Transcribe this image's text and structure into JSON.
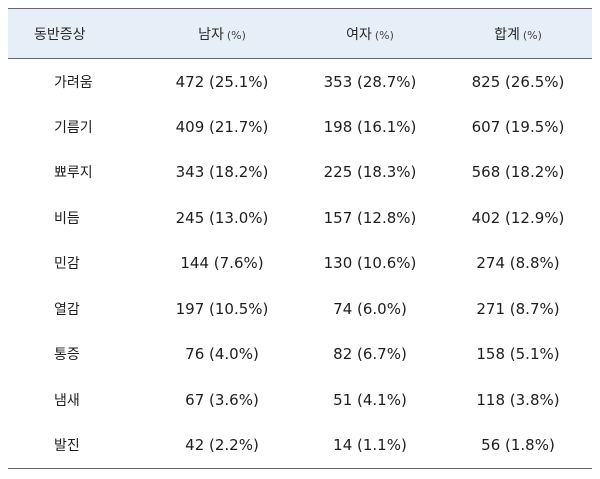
{
  "table": {
    "headers": {
      "symptom": "동반증상",
      "male": "남자",
      "female": "여자",
      "total": "합계",
      "unit": "(%)"
    },
    "rows": [
      {
        "symptom": "가려움",
        "male": "472 (25.1%)",
        "female": "353 (28.7%)",
        "total": "825 (26.5%)"
      },
      {
        "symptom": "기름기",
        "male": "409 (21.7%)",
        "female": "198 (16.1%)",
        "total": "607 (19.5%)"
      },
      {
        "symptom": "뾰루지",
        "male": "343 (18.2%)",
        "female": "225 (18.3%)",
        "total": "568 (18.2%)"
      },
      {
        "symptom": "비듬",
        "male": "245 (13.0%)",
        "female": "157 (12.8%)",
        "total": "402 (12.9%)"
      },
      {
        "symptom": "민감",
        "male": "144 (7.6%)",
        "female": "130 (10.6%)",
        "total": "274 (8.8%)"
      },
      {
        "symptom": "열감",
        "male": "197 (10.5%)",
        "female": "74 (6.0%)",
        "total": "271 (8.7%)"
      },
      {
        "symptom": "통증",
        "male": "76 (4.0%)",
        "female": "82 (6.7%)",
        "total": "158 (5.1%)"
      },
      {
        "symptom": "냄새",
        "male": "67 (3.6%)",
        "female": "51 (4.1%)",
        "total": "118 (3.8%)"
      },
      {
        "symptom": "발진",
        "male": "42 (2.2%)",
        "female": "14 (1.1%)",
        "total": "56 (1.8%)"
      }
    ]
  }
}
